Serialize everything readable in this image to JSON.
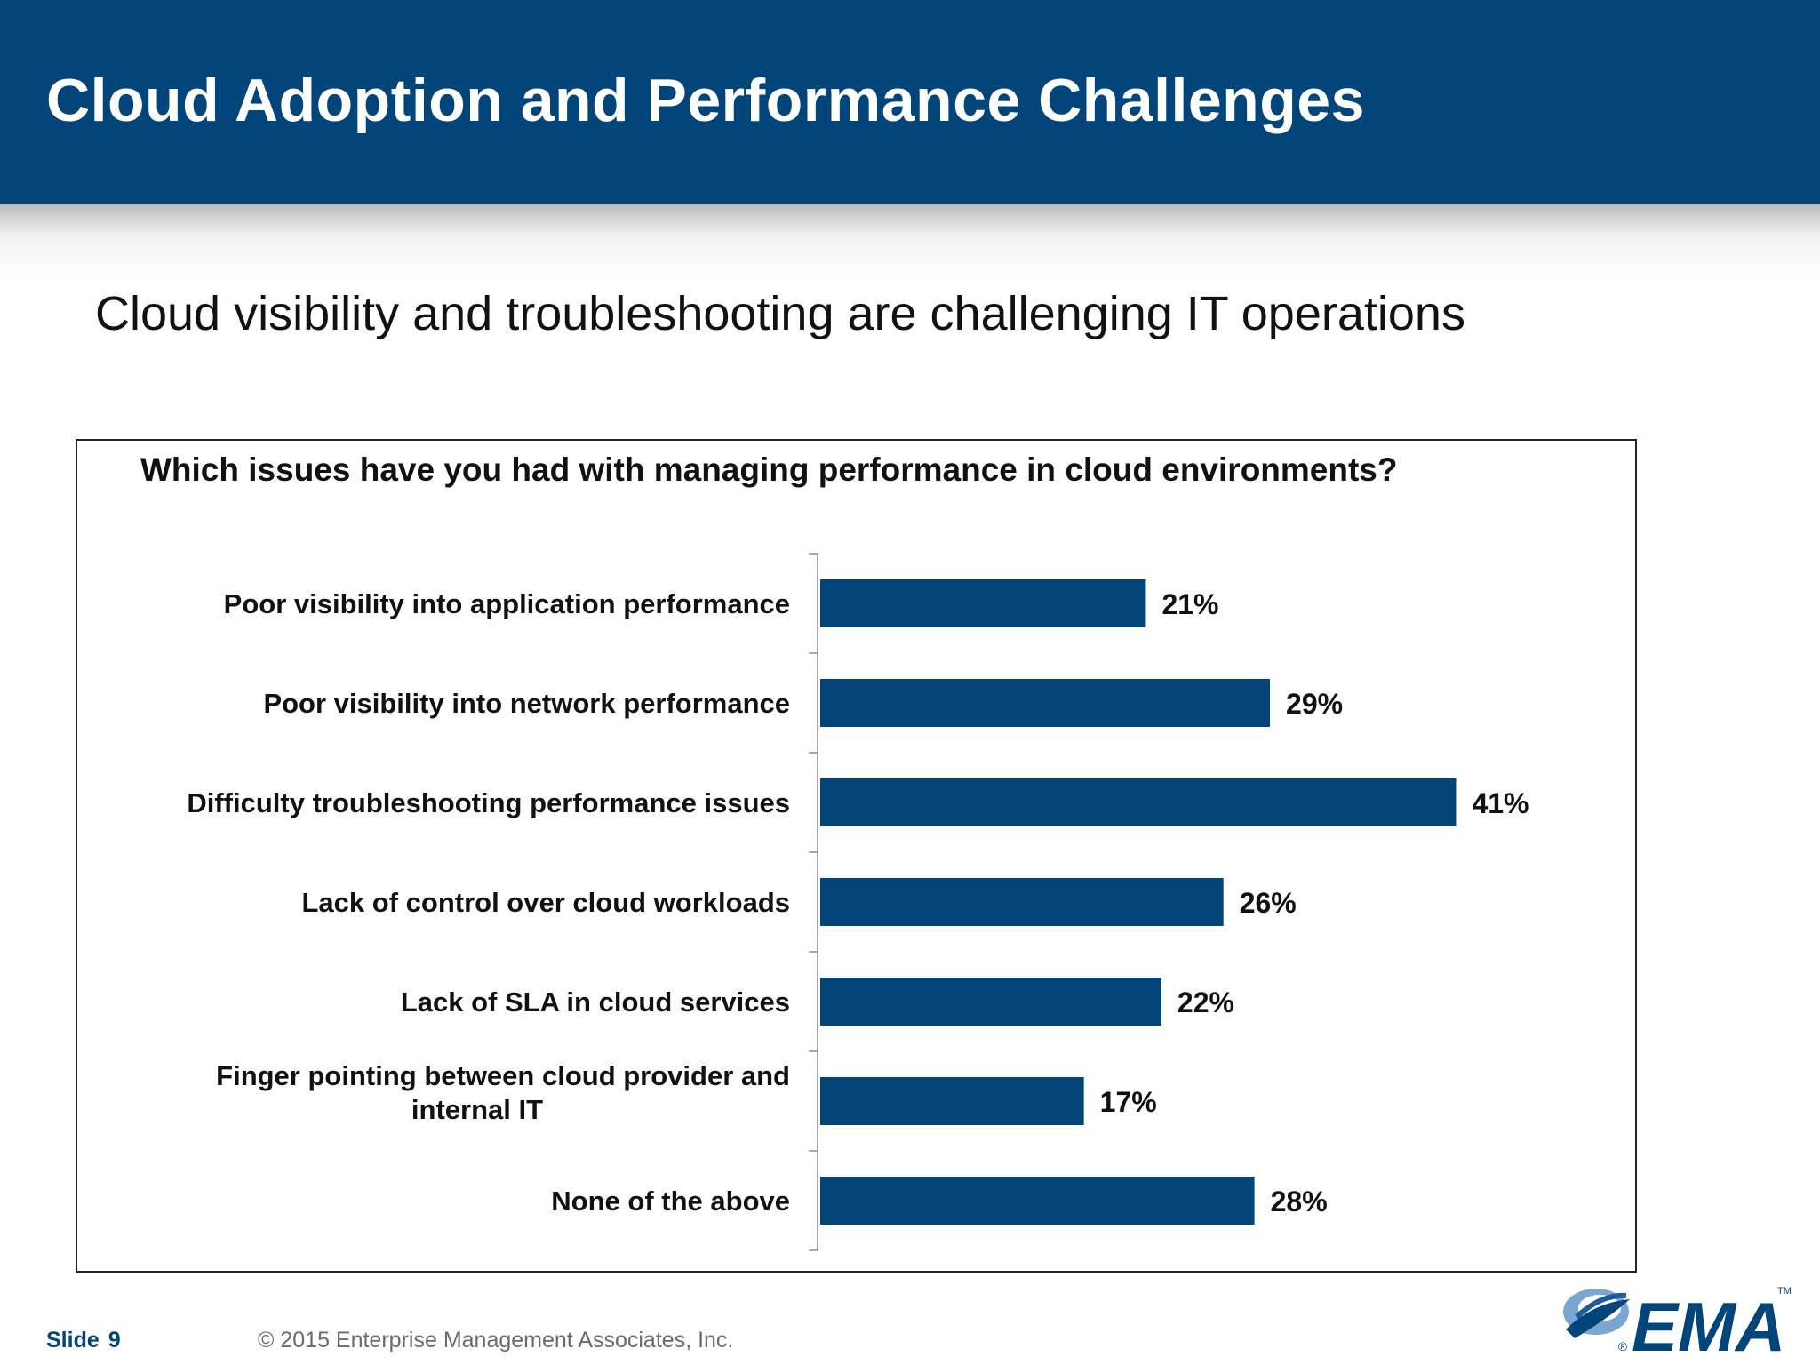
{
  "slide": {
    "title": "Cloud Adoption and Performance Challenges",
    "subtitle": "Cloud visibility and troubleshooting are challenging IT operations"
  },
  "footer": {
    "slide_label": "Slide",
    "slide_number": "9",
    "copyright": "© 2015 Enterprise Management Associates, Inc."
  },
  "logo": {
    "text": "EMA",
    "registered": "®",
    "trademark": "TM"
  },
  "colors": {
    "header_band": "#02457b",
    "bar": "#02457b"
  },
  "chart_data": {
    "type": "bar",
    "orientation": "horizontal",
    "title": "Which issues have you had with managing performance in cloud environments?",
    "categories": [
      [
        "Poor visibility into application performance"
      ],
      [
        "Poor visibility into network performance"
      ],
      [
        "Difficulty troubleshooting performance issues"
      ],
      [
        "Lack of control over cloud workloads"
      ],
      [
        "Lack of SLA in cloud services"
      ],
      [
        "Finger pointing between cloud provider and",
        "internal IT"
      ],
      [
        "None of the above"
      ]
    ],
    "values": [
      21,
      29,
      41,
      26,
      22,
      17,
      28
    ],
    "data_labels": [
      "21%",
      "29%",
      "41%",
      "26%",
      "22%",
      "17%",
      "28%"
    ],
    "xlim": [
      0,
      50
    ],
    "grid": false,
    "legend": "none"
  }
}
